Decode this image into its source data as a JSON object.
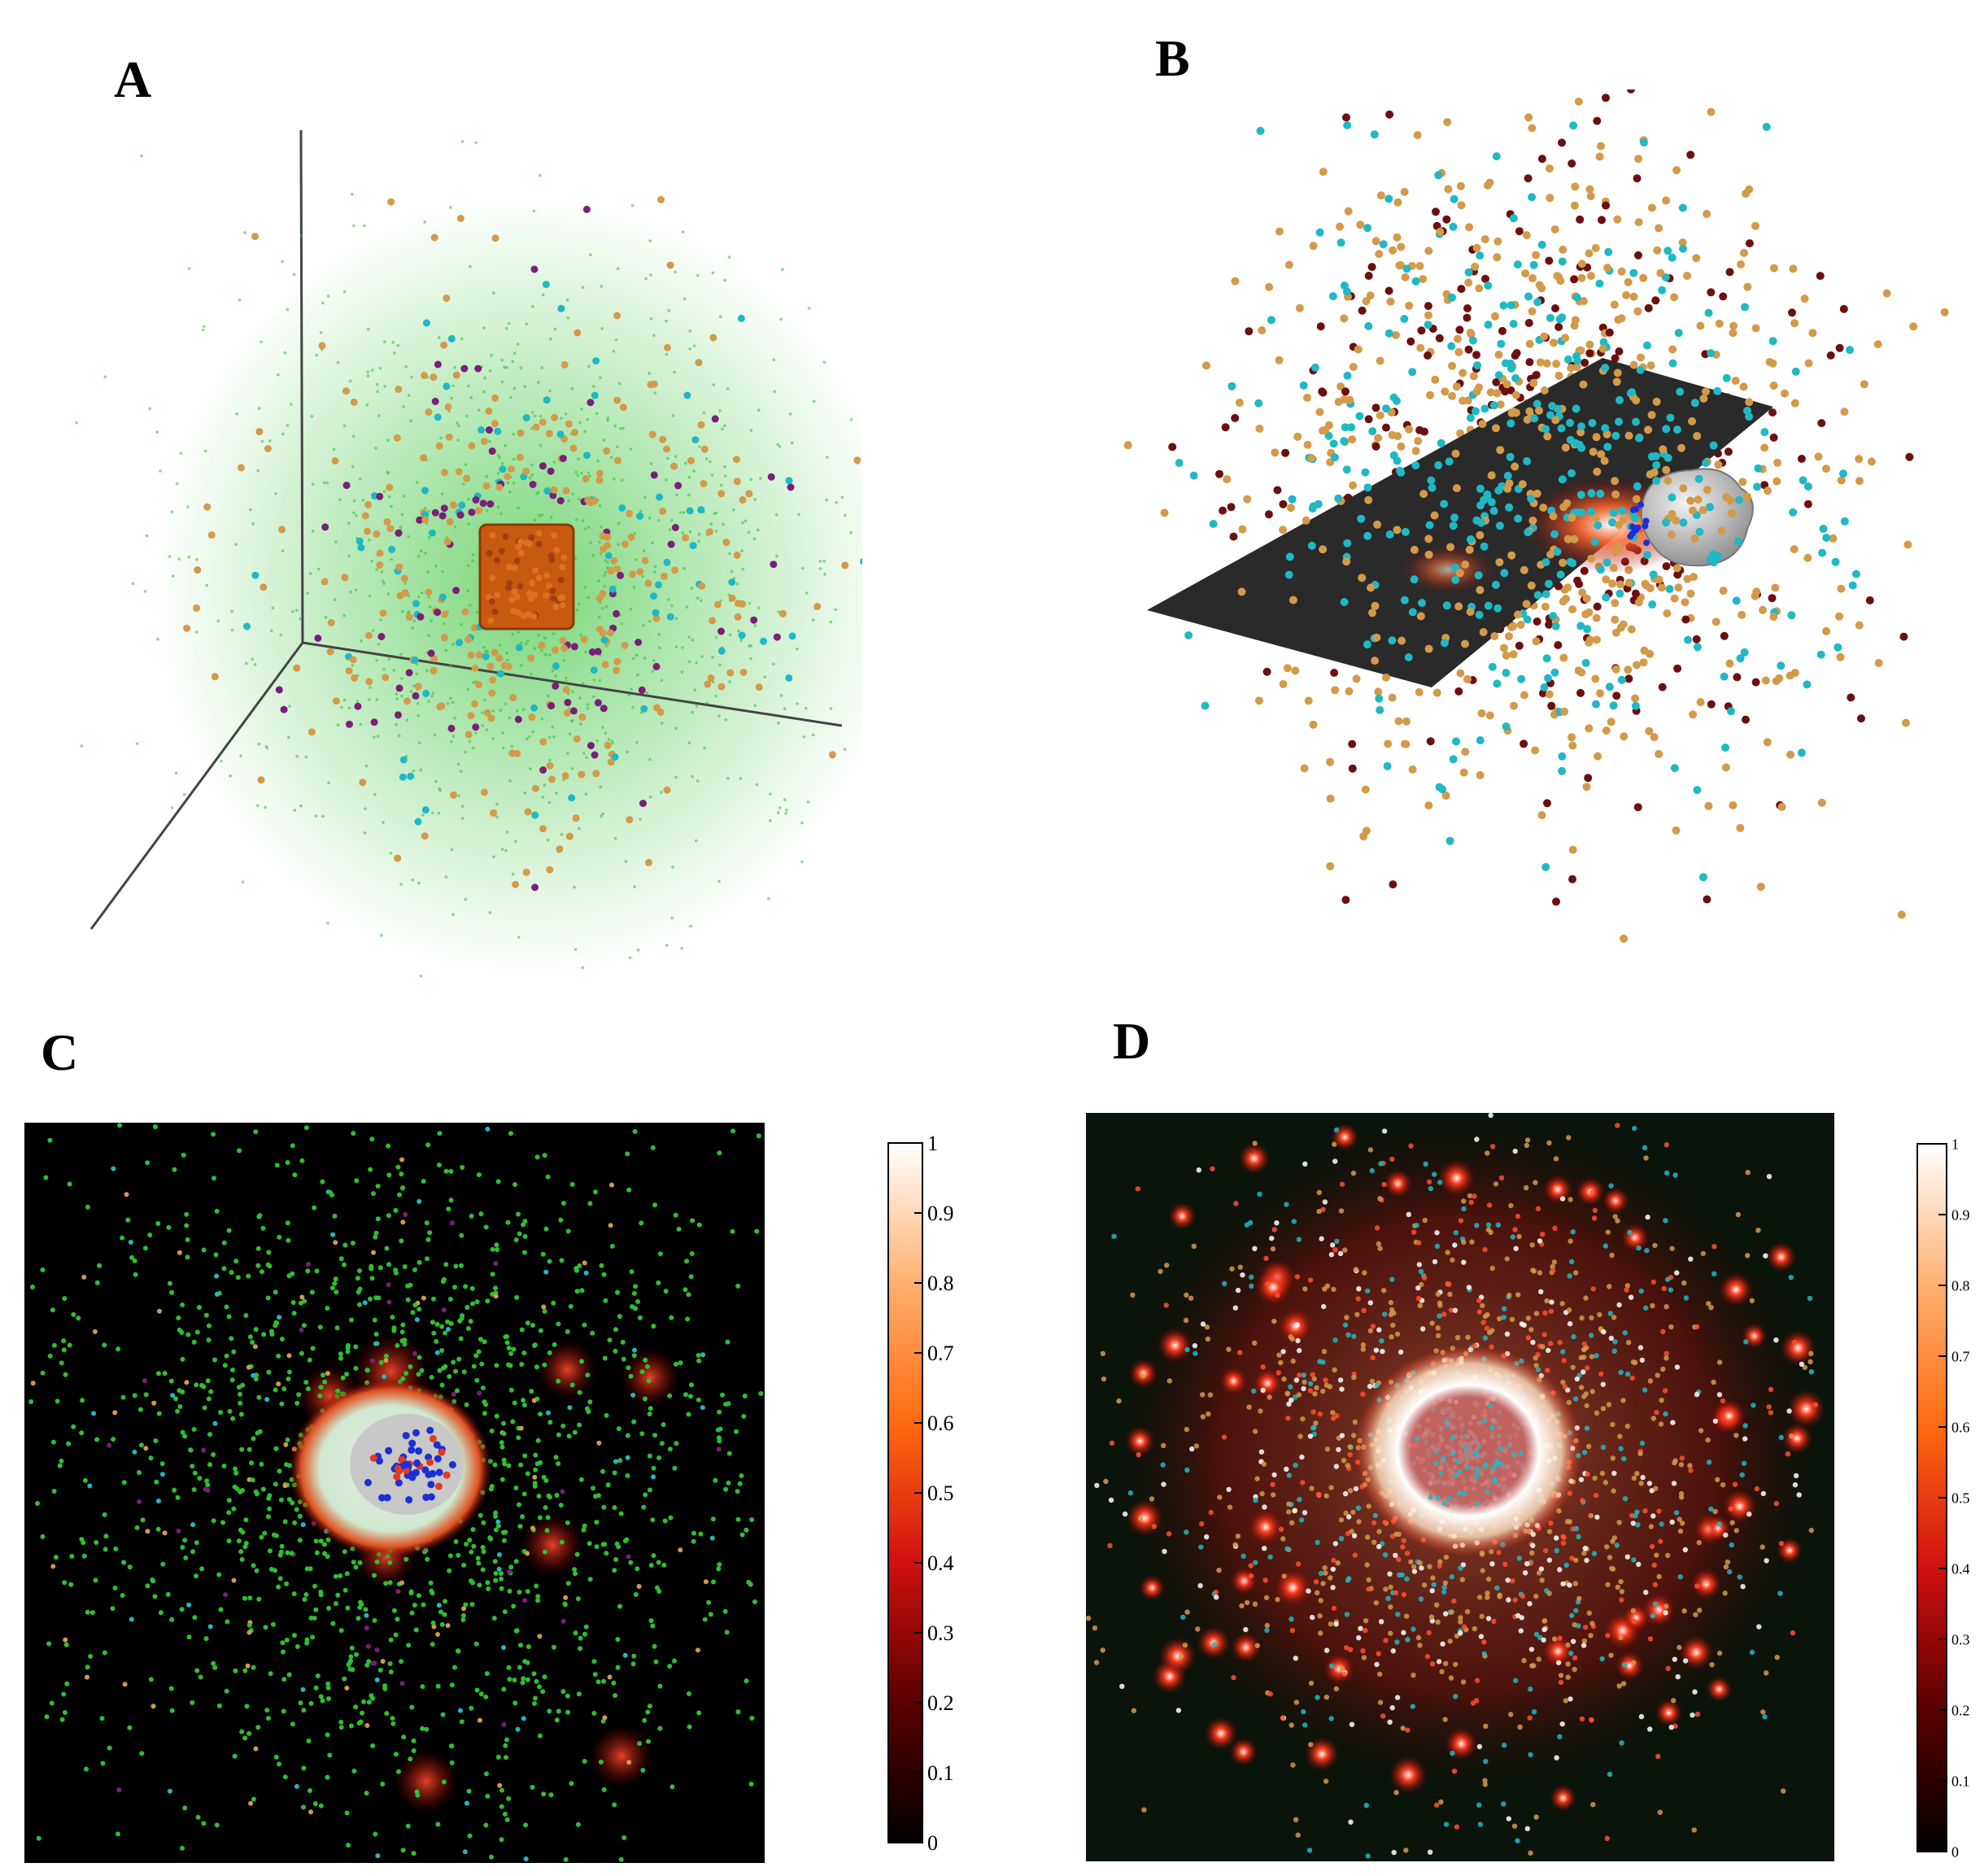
{
  "figure": {
    "panels": [
      {
        "id": "A",
        "label": "A"
      },
      {
        "id": "B",
        "label": "B"
      },
      {
        "id": "C",
        "label": "C"
      },
      {
        "id": "D",
        "label": "D"
      }
    ]
  },
  "colors": {
    "green": "#2fbf2f",
    "cyan": "#1fb8c4",
    "tan": "#d39a4a",
    "purple": "#7a1f78",
    "maroon": "#6b0f0f",
    "blue": "#1a2fd6",
    "red": "#e23a20",
    "orange": "#c85a10",
    "grey": "#c8c8c8"
  },
  "colorbars": {
    "c": {
      "ticks": [
        "0",
        "0.1",
        "0.2",
        "0.3",
        "0.4",
        "0.5",
        "0.6",
        "0.7",
        "0.8",
        "0.9",
        "1"
      ]
    },
    "d": {
      "ticks": [
        "0",
        "0.1",
        "0.2",
        "0.3",
        "0.4",
        "0.5",
        "0.6",
        "0.7",
        "0.8",
        "0.9",
        "1"
      ]
    }
  }
}
